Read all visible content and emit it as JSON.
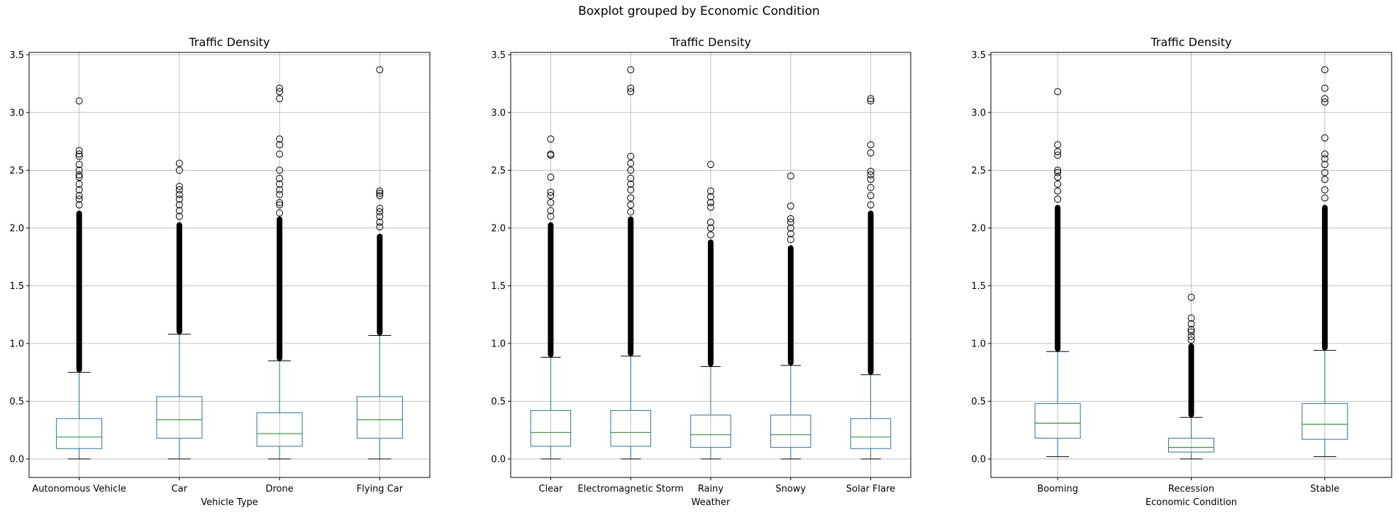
{
  "suptitle": "Boxplot grouped by Economic Condition",
  "colors": {
    "box": "#1f77b4",
    "median": "#2ca02c",
    "grid": "#b0b0b0",
    "flier": "#000000"
  },
  "chart_data": [
    {
      "type": "box",
      "title": "Traffic Density",
      "xlabel": "Vehicle Type",
      "ylabel": "",
      "ylim": [
        -0.16,
        3.52
      ],
      "yticks": [
        "0.0",
        "0.5",
        "1.0",
        "1.5",
        "2.0",
        "2.5",
        "3.0",
        "3.5"
      ],
      "grid": true,
      "categories": [
        "Autonomous Vehicle",
        "Car",
        "Drone",
        "Flying Car"
      ],
      "boxes": [
        {
          "min": 0.0,
          "q1": 0.09,
          "median": 0.19,
          "q3": 0.35,
          "whisker_high": 0.75,
          "dense_outliers_to": 2.15,
          "outliers": [
            2.2,
            2.25,
            2.28,
            2.33,
            2.38,
            2.44,
            2.46,
            2.5,
            2.55,
            2.62,
            2.64,
            2.67,
            3.1
          ]
        },
        {
          "min": 0.0,
          "q1": 0.18,
          "median": 0.34,
          "q3": 0.54,
          "whisker_high": 1.08,
          "dense_outliers_to": 2.05,
          "outliers": [
            2.1,
            2.15,
            2.2,
            2.25,
            2.29,
            2.33,
            2.36,
            2.5,
            2.56
          ]
        },
        {
          "min": 0.0,
          "q1": 0.11,
          "median": 0.22,
          "q3": 0.4,
          "whisker_high": 0.85,
          "dense_outliers_to": 2.1,
          "outliers": [
            2.13,
            2.2,
            2.22,
            2.29,
            2.33,
            2.38,
            2.43,
            2.5,
            2.64,
            2.72,
            2.77,
            3.12,
            3.18,
            3.21
          ]
        },
        {
          "min": 0.0,
          "q1": 0.18,
          "median": 0.34,
          "q3": 0.54,
          "whisker_high": 1.07,
          "dense_outliers_to": 1.95,
          "outliers": [
            2.01,
            2.05,
            2.1,
            2.14,
            2.17,
            2.28,
            2.3,
            2.32,
            3.37
          ]
        }
      ]
    },
    {
      "type": "box",
      "title": "Traffic Density",
      "xlabel": "Weather",
      "ylabel": "",
      "ylim": [
        -0.16,
        3.52
      ],
      "yticks": [
        "0.0",
        "0.5",
        "1.0",
        "1.5",
        "2.0",
        "2.5",
        "3.0",
        "3.5"
      ],
      "grid": true,
      "categories": [
        "Clear",
        "Electromagnetic Storm",
        "Rainy",
        "Snowy",
        "Solar Flare"
      ],
      "boxes": [
        {
          "min": 0.0,
          "q1": 0.11,
          "median": 0.23,
          "q3": 0.42,
          "whisker_high": 0.88,
          "dense_outliers_to": 2.05,
          "outliers": [
            2.1,
            2.15,
            2.22,
            2.28,
            2.31,
            2.44,
            2.63,
            2.64,
            2.77
          ]
        },
        {
          "min": 0.0,
          "q1": 0.11,
          "median": 0.23,
          "q3": 0.42,
          "whisker_high": 0.89,
          "dense_outliers_to": 2.1,
          "outliers": [
            2.14,
            2.2,
            2.26,
            2.33,
            2.38,
            2.43,
            2.5,
            2.56,
            2.62,
            3.18,
            3.21,
            3.37
          ]
        },
        {
          "min": 0.0,
          "q1": 0.1,
          "median": 0.21,
          "q3": 0.38,
          "whisker_high": 0.8,
          "dense_outliers_to": 1.9,
          "outliers": [
            1.94,
            2.0,
            2.05,
            2.18,
            2.22,
            2.27,
            2.32,
            2.55
          ]
        },
        {
          "min": 0.0,
          "q1": 0.1,
          "median": 0.21,
          "q3": 0.38,
          "whisker_high": 0.81,
          "dense_outliers_to": 1.85,
          "outliers": [
            1.9,
            1.95,
            2.0,
            2.05,
            2.08,
            2.19,
            2.45
          ]
        },
        {
          "min": 0.0,
          "q1": 0.09,
          "median": 0.19,
          "q3": 0.35,
          "whisker_high": 0.73,
          "dense_outliers_to": 2.15,
          "outliers": [
            2.2,
            2.28,
            2.35,
            2.42,
            2.46,
            2.49,
            2.65,
            2.72,
            3.1,
            3.12
          ]
        }
      ]
    },
    {
      "type": "box",
      "title": "Traffic Density",
      "xlabel": "Economic Condition",
      "ylabel": "",
      "ylim": [
        -0.16,
        3.52
      ],
      "yticks": [
        "0.0",
        "0.5",
        "1.0",
        "1.5",
        "2.0",
        "2.5",
        "3.0",
        "3.5"
      ],
      "grid": true,
      "categories": [
        "Booming",
        "Recession",
        "Stable"
      ],
      "boxes": [
        {
          "min": 0.02,
          "q1": 0.18,
          "median": 0.31,
          "q3": 0.48,
          "whisker_high": 0.93,
          "dense_outliers_to": 2.2,
          "outliers": [
            2.25,
            2.32,
            2.38,
            2.44,
            2.48,
            2.5,
            2.63,
            2.66,
            2.72,
            3.18
          ]
        },
        {
          "min": 0.0,
          "q1": 0.06,
          "median": 0.1,
          "q3": 0.18,
          "whisker_high": 0.36,
          "dense_outliers_to": 1.0,
          "outliers": [
            1.03,
            1.06,
            1.1,
            1.12,
            1.17,
            1.22,
            1.4
          ]
        },
        {
          "min": 0.02,
          "q1": 0.17,
          "median": 0.3,
          "q3": 0.48,
          "whisker_high": 0.94,
          "dense_outliers_to": 2.2,
          "outliers": [
            2.26,
            2.33,
            2.42,
            2.48,
            2.55,
            2.6,
            2.64,
            2.78,
            3.09,
            3.12,
            3.21,
            3.37
          ]
        }
      ]
    }
  ]
}
